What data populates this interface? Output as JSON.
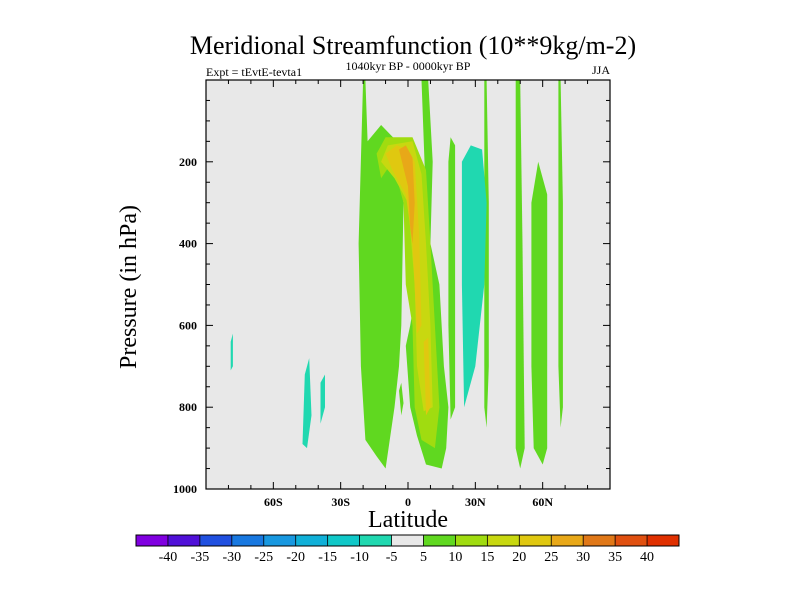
{
  "chart_data": {
    "type": "heatmap",
    "title": "Meridional Streamfunction (10**9kg/m-2)",
    "subtitle_left": "Expt = tEvtE-tevta1",
    "subtitle_center": "1040kyr BP - 0000kyr BP",
    "subtitle_right": "JJA",
    "xlabel": "Latitude",
    "ylabel": "Pressure (in hPa)",
    "xlim": [
      -90,
      90
    ],
    "ylim": [
      0,
      1000
    ],
    "y_inverted": true,
    "x_ticks": [
      {
        "value": -60,
        "label": "60S"
      },
      {
        "value": -30,
        "label": "30S"
      },
      {
        "value": 0,
        "label": "0"
      },
      {
        "value": 30,
        "label": "30N"
      },
      {
        "value": 60,
        "label": "60N"
      }
    ],
    "y_ticks": [
      {
        "value": 200,
        "label": "200"
      },
      {
        "value": 400,
        "label": "400"
      },
      {
        "value": 600,
        "label": "600"
      },
      {
        "value": 800,
        "label": "800"
      },
      {
        "value": 1000,
        "label": "1000"
      }
    ],
    "background_color": "#e8e8e8",
    "colorbar": {
      "levels": [
        "-40",
        "-35",
        "-30",
        "-25",
        "-20",
        "-15",
        "-10",
        "-5",
        "5",
        "10",
        "15",
        "20",
        "25",
        "30",
        "35",
        "40"
      ],
      "colors": [
        "#8000e0",
        "#5010d8",
        "#2050e0",
        "#1878e0",
        "#1898e0",
        "#10b0d8",
        "#10c8c8",
        "#20d8b0",
        "#e8e8e8",
        "#60d820",
        "#a0dc10",
        "#c8d810",
        "#e0c810",
        "#e8a818",
        "#e07818",
        "#e05010",
        "#e03000"
      ]
    },
    "regions": [
      {
        "level": "5-10",
        "color": "#60d820",
        "points": [
          [
            -20,
            0
          ],
          [
            -19,
            0
          ],
          [
            -18,
            150
          ],
          [
            -12,
            110
          ],
          [
            -5,
            150
          ],
          [
            -2,
            300
          ],
          [
            -3,
            600
          ],
          [
            -4,
            700
          ],
          [
            -6,
            800
          ],
          [
            -10,
            950
          ],
          [
            -14,
            920
          ],
          [
            -19,
            880
          ],
          [
            -21,
            700
          ],
          [
            -22,
            400
          ]
        ]
      },
      {
        "level": "5-10",
        "color": "#60d820",
        "points": [
          [
            -1,
            650
          ],
          [
            1,
            600
          ],
          [
            4,
            500
          ],
          [
            8,
            300
          ],
          [
            6,
            0
          ],
          [
            9,
            0
          ],
          [
            11,
            200
          ],
          [
            10,
            400
          ],
          [
            14,
            500
          ],
          [
            16,
            700
          ],
          [
            18,
            800
          ],
          [
            17,
            900
          ],
          [
            15,
            950
          ],
          [
            8,
            940
          ],
          [
            4,
            870
          ],
          [
            1,
            800
          ]
        ]
      },
      {
        "level": "5-10",
        "color": "#60d820",
        "points": [
          [
            18,
            200
          ],
          [
            19,
            140
          ],
          [
            21,
            160
          ],
          [
            21,
            800
          ],
          [
            19,
            830
          ],
          [
            18,
            600
          ]
        ]
      },
      {
        "level": "5-10",
        "color": "#60d820",
        "points": [
          [
            34,
            0
          ],
          [
            35,
            0
          ],
          [
            36,
            300
          ],
          [
            36,
            700
          ],
          [
            35,
            850
          ],
          [
            34,
            800
          ],
          [
            34,
            400
          ]
        ]
      },
      {
        "level": "5-10",
        "color": "#60d820",
        "points": [
          [
            48,
            0
          ],
          [
            50,
            0
          ],
          [
            51,
            400
          ],
          [
            52,
            900
          ],
          [
            50,
            950
          ],
          [
            48,
            900
          ],
          [
            48,
            400
          ]
        ]
      },
      {
        "level": "5-10",
        "color": "#60d820",
        "points": [
          [
            55,
            300
          ],
          [
            58,
            200
          ],
          [
            62,
            280
          ],
          [
            62,
            900
          ],
          [
            60,
            940
          ],
          [
            56,
            900
          ],
          [
            55,
            700
          ]
        ]
      },
      {
        "level": "5-10",
        "color": "#60d820",
        "points": [
          [
            67,
            0
          ],
          [
            68,
            0
          ],
          [
            69,
            300
          ],
          [
            69,
            800
          ],
          [
            68,
            850
          ],
          [
            67,
            700
          ]
        ]
      },
      {
        "level": "5-10",
        "color": "#60d820",
        "points": [
          [
            -4,
            760
          ],
          [
            -3,
            740
          ],
          [
            -2,
            790
          ],
          [
            -3,
            820
          ]
        ]
      },
      {
        "level": "-5--10",
        "color": "#20d8b0",
        "points": [
          [
            24,
            200
          ],
          [
            28,
            160
          ],
          [
            33,
            170
          ],
          [
            35,
            300
          ],
          [
            34,
            500
          ],
          [
            30,
            700
          ],
          [
            25,
            800
          ],
          [
            24,
            500
          ]
        ]
      },
      {
        "level": "-5--10",
        "color": "#20d8b0",
        "points": [
          [
            -47,
            890
          ],
          [
            -46,
            720
          ],
          [
            -44,
            680
          ],
          [
            -43,
            820
          ],
          [
            -45,
            900
          ]
        ]
      },
      {
        "level": "-5--10",
        "color": "#20d8b0",
        "points": [
          [
            -39,
            840
          ],
          [
            -39,
            740
          ],
          [
            -37,
            720
          ],
          [
            -37,
            800
          ]
        ]
      },
      {
        "level": "-5--10",
        "color": "#20d8b0",
        "points": [
          [
            -79,
            710
          ],
          [
            -79,
            640
          ],
          [
            -78,
            620
          ],
          [
            -78,
            700
          ]
        ]
      },
      {
        "level": "10-15",
        "color": "#a0dc10",
        "points": [
          [
            -14,
            180
          ],
          [
            -10,
            140
          ],
          [
            2,
            140
          ],
          [
            8,
            220
          ],
          [
            10,
            400
          ],
          [
            12,
            600
          ],
          [
            14,
            800
          ],
          [
            12,
            900
          ],
          [
            6,
            880
          ],
          [
            3,
            800
          ],
          [
            2,
            600
          ],
          [
            -1,
            500
          ],
          [
            -2,
            300
          ],
          [
            -7,
            200
          ],
          [
            -12,
            240
          ]
        ]
      },
      {
        "level": "15-20",
        "color": "#c8d810",
        "points": [
          [
            -12,
            200
          ],
          [
            -9,
            160
          ],
          [
            2,
            150
          ],
          [
            6,
            230
          ],
          [
            8,
            400
          ],
          [
            10,
            600
          ],
          [
            11,
            800
          ],
          [
            7,
            810
          ],
          [
            4,
            700
          ],
          [
            3,
            500
          ],
          [
            0,
            300
          ],
          [
            -6,
            240
          ]
        ]
      },
      {
        "level": "20-25",
        "color": "#e0c810",
        "points": [
          [
            -10,
            180
          ],
          [
            -5,
            160
          ],
          [
            0,
            170
          ],
          [
            3,
            200
          ],
          [
            5,
            380
          ],
          [
            6,
            600
          ],
          [
            4,
            620
          ],
          [
            2,
            400
          ],
          [
            -1,
            280
          ],
          [
            -7,
            220
          ]
        ]
      },
      {
        "level": "20-25",
        "color": "#e0c810",
        "points": [
          [
            7,
            640
          ],
          [
            9,
            630
          ],
          [
            10,
            800
          ],
          [
            8,
            820
          ]
        ]
      },
      {
        "level": "25-30",
        "color": "#e8a818",
        "points": [
          [
            -4,
            170
          ],
          [
            -1,
            160
          ],
          [
            2,
            190
          ],
          [
            3,
            300
          ],
          [
            2,
            400
          ],
          [
            1,
            360
          ],
          [
            0,
            260
          ]
        ]
      }
    ]
  }
}
